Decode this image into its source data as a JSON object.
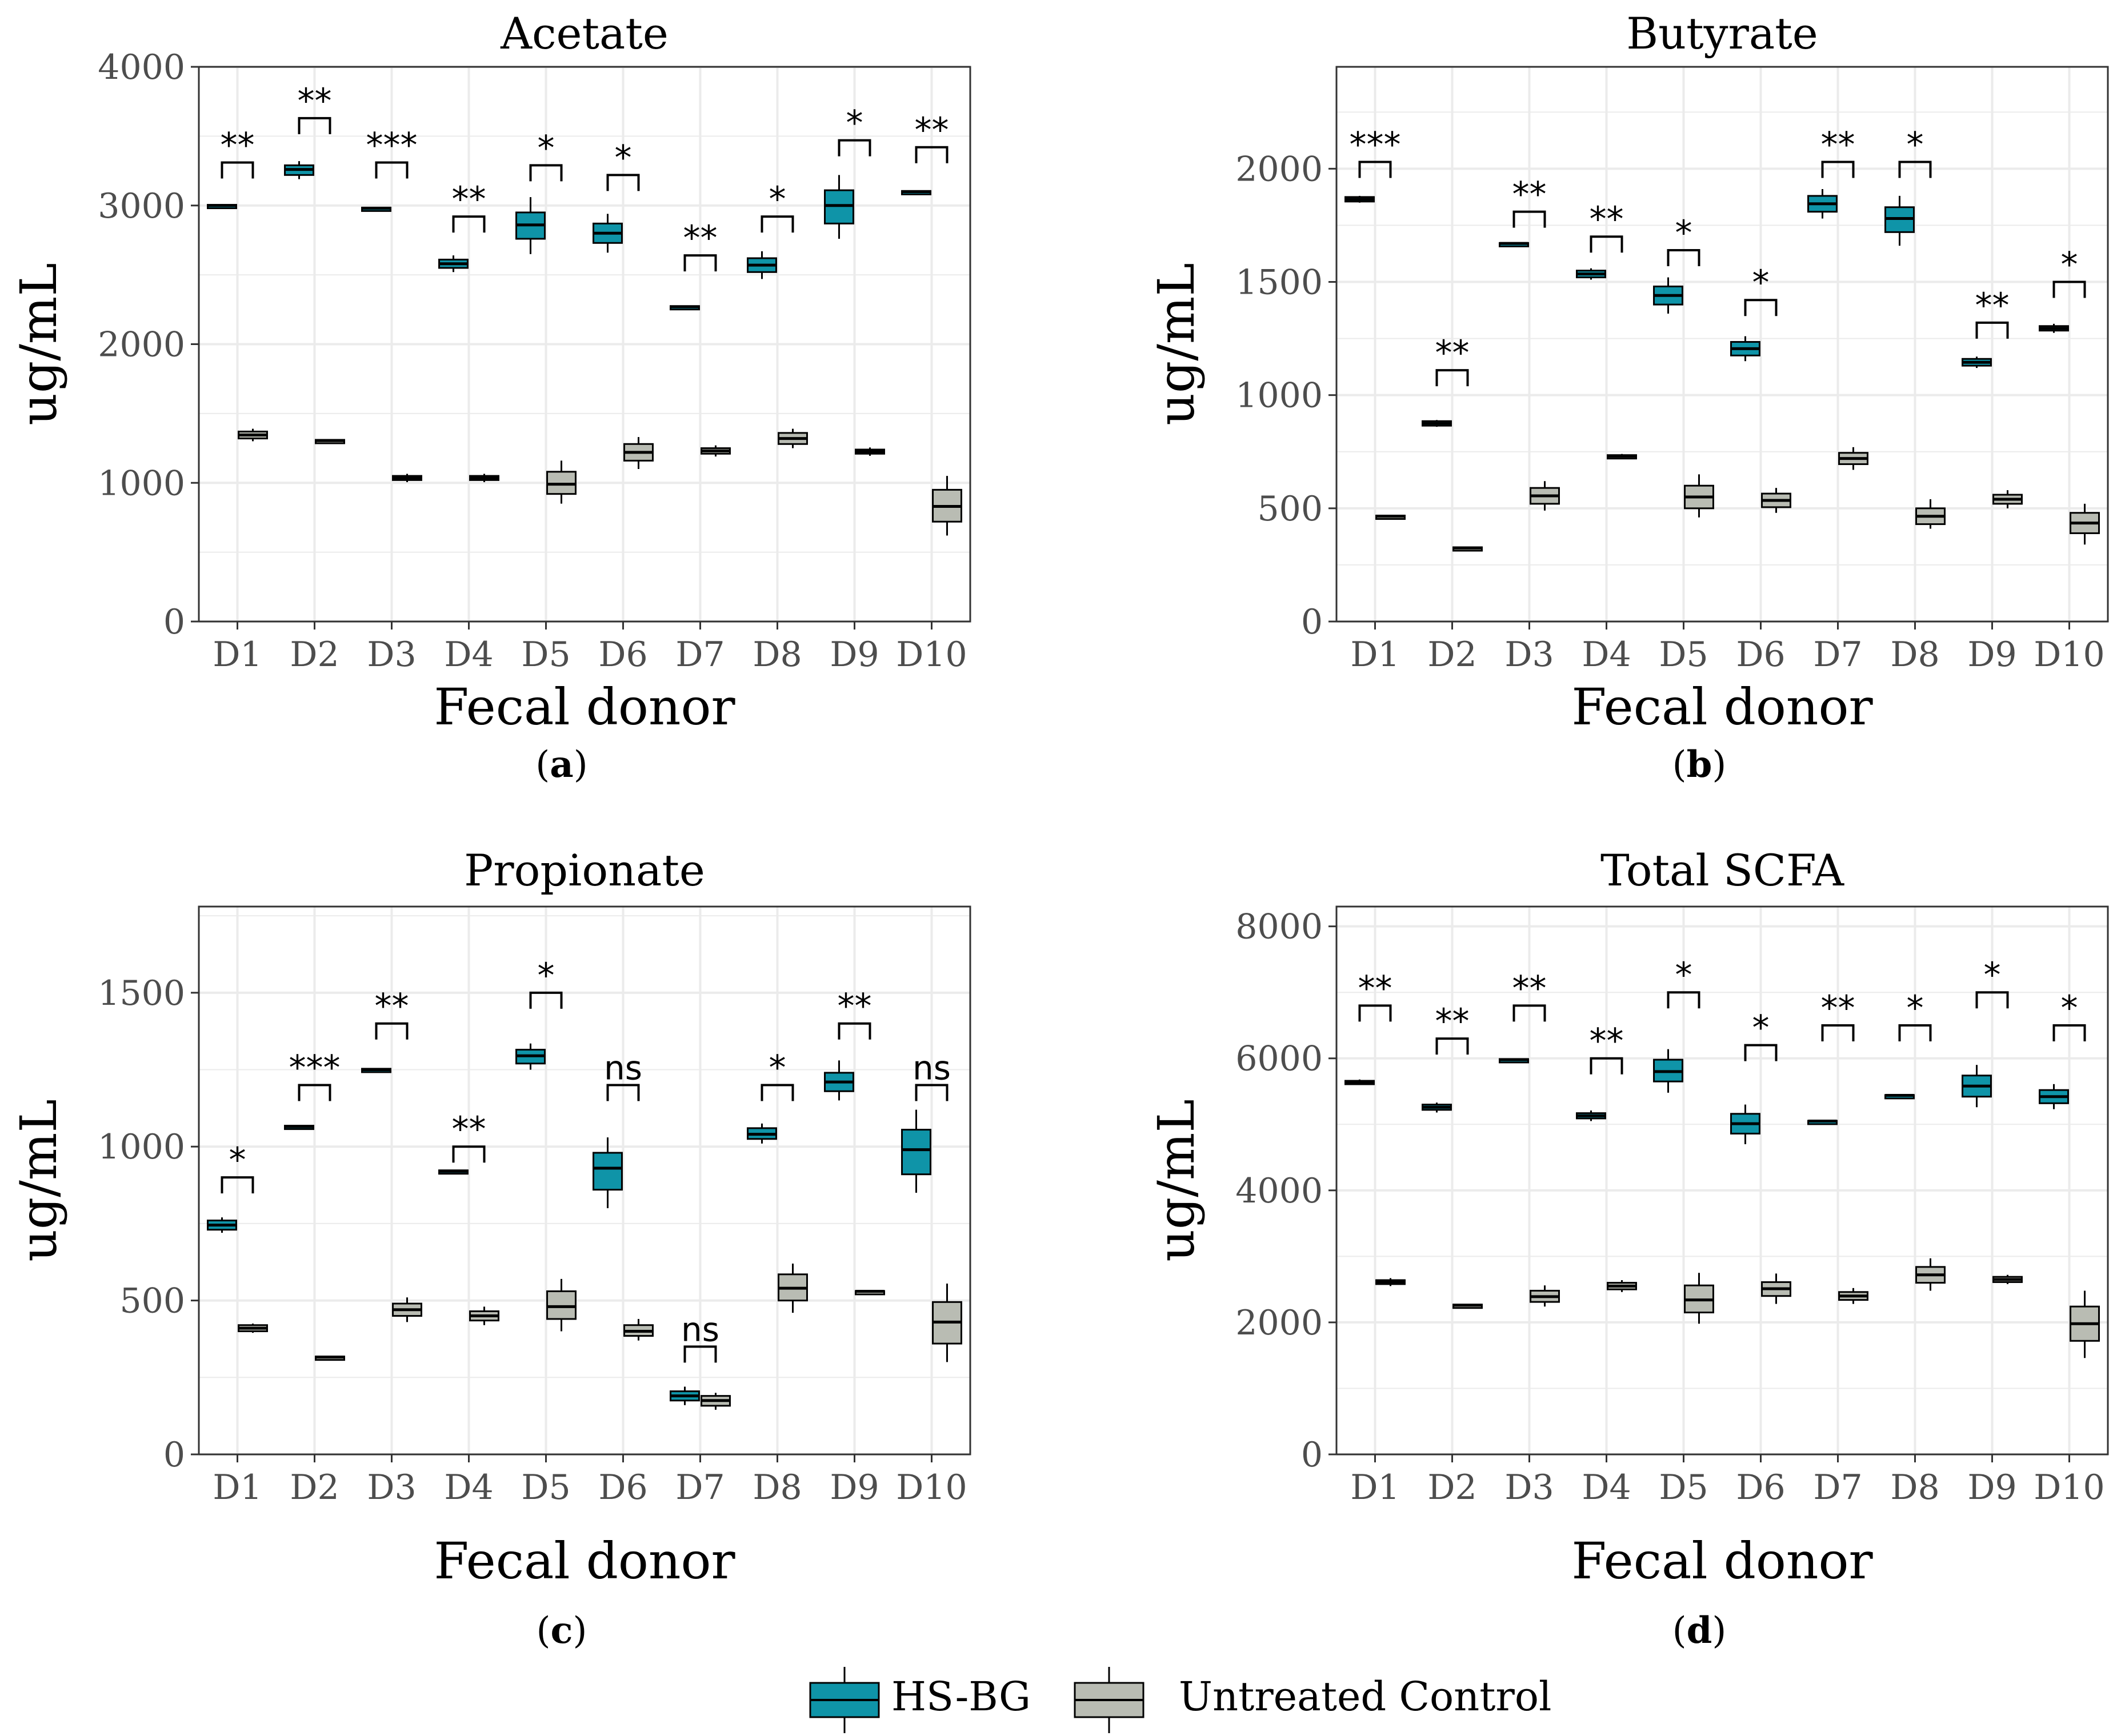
{
  "colors": {
    "hsbg": "#0f94a8",
    "control": "#b9bcb3",
    "grid": "#ebebeb",
    "axis_text": "#4d4d4d",
    "border": "#333333"
  },
  "legend": {
    "hsbg_label": "HS-BG",
    "control_label": "Untreated Control"
  },
  "chart_data": [
    {
      "id": "a",
      "type": "box",
      "title": "Acetate",
      "caption": "a",
      "xlabel": "Fecal donor",
      "ylabel": "ug/mL",
      "categories": [
        "D1",
        "D2",
        "D3",
        "D4",
        "D5",
        "D6",
        "D7",
        "D8",
        "D9",
        "D10"
      ],
      "ylim": [
        0,
        4000
      ],
      "yticks": [
        0,
        1000,
        2000,
        3000,
        4000
      ],
      "series": [
        {
          "name": "HS-BG",
          "boxes": [
            {
              "min": 2990,
              "q1": 2995,
              "median": 3000,
              "q3": 3005,
              "max": 3010
            },
            {
              "min": 3190,
              "q1": 3220,
              "median": 3260,
              "q3": 3290,
              "max": 3320
            },
            {
              "min": 2970,
              "q1": 2975,
              "median": 2980,
              "q3": 2985,
              "max": 2990
            },
            {
              "min": 2520,
              "q1": 2550,
              "median": 2580,
              "q3": 2610,
              "max": 2640
            },
            {
              "min": 2650,
              "q1": 2760,
              "median": 2860,
              "q3": 2950,
              "max": 3060
            },
            {
              "min": 2660,
              "q1": 2730,
              "median": 2800,
              "q3": 2870,
              "max": 2940
            },
            {
              "min": 2260,
              "q1": 2265,
              "median": 2270,
              "q3": 2275,
              "max": 2280
            },
            {
              "min": 2470,
              "q1": 2520,
              "median": 2570,
              "q3": 2620,
              "max": 2670
            },
            {
              "min": 2760,
              "q1": 2870,
              "median": 3000,
              "q3": 3110,
              "max": 3220
            },
            {
              "min": 3090,
              "q1": 3095,
              "median": 3100,
              "q3": 3105,
              "max": 3110
            }
          ]
        },
        {
          "name": "Untreated Control",
          "boxes": [
            {
              "min": 1300,
              "q1": 1320,
              "median": 1345,
              "q3": 1370,
              "max": 1390
            },
            {
              "min": 1295,
              "q1": 1300,
              "median": 1305,
              "q3": 1310,
              "max": 1315
            },
            {
              "min": 1005,
              "q1": 1020,
              "median": 1035,
              "q3": 1050,
              "max": 1065
            },
            {
              "min": 1005,
              "q1": 1020,
              "median": 1035,
              "q3": 1050,
              "max": 1065
            },
            {
              "min": 850,
              "q1": 920,
              "median": 990,
              "q3": 1080,
              "max": 1160
            },
            {
              "min": 1100,
              "q1": 1160,
              "median": 1220,
              "q3": 1280,
              "max": 1330
            },
            {
              "min": 1190,
              "q1": 1210,
              "median": 1230,
              "q3": 1250,
              "max": 1270
            },
            {
              "min": 1250,
              "q1": 1280,
              "median": 1320,
              "q3": 1360,
              "max": 1390
            },
            {
              "min": 1195,
              "q1": 1210,
              "median": 1225,
              "q3": 1240,
              "max": 1255
            },
            {
              "min": 620,
              "q1": 720,
              "median": 830,
              "q3": 950,
              "max": 1050
            }
          ]
        }
      ],
      "significance": [
        {
          "label": "**",
          "y": 3310
        },
        {
          "label": "**",
          "y": 3630
        },
        {
          "label": "***",
          "y": 3310
        },
        {
          "label": "**",
          "y": 2920
        },
        {
          "label": "*",
          "y": 3290
        },
        {
          "label": "*",
          "y": 3220
        },
        {
          "label": "**",
          "y": 2640
        },
        {
          "label": "*",
          "y": 2920
        },
        {
          "label": "*",
          "y": 3470
        },
        {
          "label": "**",
          "y": 3420
        }
      ]
    },
    {
      "id": "b",
      "type": "box",
      "title": "Butyrate",
      "caption": "b",
      "xlabel": "Fecal donor",
      "ylabel": "ug/mL",
      "categories": [
        "D1",
        "D2",
        "D3",
        "D4",
        "D5",
        "D6",
        "D7",
        "D8",
        "D9",
        "D10"
      ],
      "ylim": [
        0,
        2450
      ],
      "yticks": [
        0,
        500,
        1000,
        1500,
        2000
      ],
      "series": [
        {
          "name": "HS-BG",
          "boxes": [
            {
              "min": 1850,
              "q1": 1855,
              "median": 1865,
              "q3": 1875,
              "max": 1880
            },
            {
              "min": 860,
              "q1": 865,
              "median": 875,
              "q3": 885,
              "max": 890
            },
            {
              "min": 1665,
              "q1": 1668,
              "median": 1670,
              "q3": 1672,
              "max": 1675
            },
            {
              "min": 1510,
              "q1": 1520,
              "median": 1535,
              "q3": 1550,
              "max": 1560
            },
            {
              "min": 1360,
              "q1": 1400,
              "median": 1440,
              "q3": 1480,
              "max": 1520
            },
            {
              "min": 1150,
              "q1": 1175,
              "median": 1205,
              "q3": 1235,
              "max": 1260
            },
            {
              "min": 1780,
              "q1": 1810,
              "median": 1845,
              "q3": 1880,
              "max": 1910
            },
            {
              "min": 1660,
              "q1": 1720,
              "median": 1780,
              "q3": 1830,
              "max": 1880
            },
            {
              "min": 1120,
              "q1": 1130,
              "median": 1145,
              "q3": 1160,
              "max": 1170
            },
            {
              "min": 1275,
              "q1": 1285,
              "median": 1295,
              "q3": 1305,
              "max": 1315
            }
          ]
        },
        {
          "name": "Untreated Control",
          "boxes": [
            {
              "min": 460,
              "q1": 462,
              "median": 465,
              "q3": 468,
              "max": 470
            },
            {
              "min": 320,
              "q1": 322,
              "median": 325,
              "q3": 328,
              "max": 330
            },
            {
              "min": 490,
              "q1": 520,
              "median": 555,
              "q3": 590,
              "max": 620
            },
            {
              "min": 720,
              "q1": 725,
              "median": 730,
              "q3": 735,
              "max": 740
            },
            {
              "min": 460,
              "q1": 500,
              "median": 550,
              "q3": 600,
              "max": 650
            },
            {
              "min": 480,
              "q1": 505,
              "median": 535,
              "q3": 565,
              "max": 590
            },
            {
              "min": 670,
              "q1": 695,
              "median": 720,
              "q3": 745,
              "max": 770
            },
            {
              "min": 410,
              "q1": 430,
              "median": 465,
              "q3": 500,
              "max": 540
            },
            {
              "min": 500,
              "q1": 520,
              "median": 540,
              "q3": 560,
              "max": 580
            },
            {
              "min": 340,
              "q1": 390,
              "median": 435,
              "q3": 480,
              "max": 520
            }
          ]
        }
      ],
      "significance": [
        {
          "label": "***",
          "y": 2030
        },
        {
          "label": "**",
          "y": 1110
        },
        {
          "label": "**",
          "y": 1810
        },
        {
          "label": "**",
          "y": 1700
        },
        {
          "label": "*",
          "y": 1640
        },
        {
          "label": "*",
          "y": 1420
        },
        {
          "label": "**",
          "y": 2030
        },
        {
          "label": "*",
          "y": 2030
        },
        {
          "label": "**",
          "y": 1320
        },
        {
          "label": "*",
          "y": 1500
        }
      ]
    },
    {
      "id": "c",
      "type": "box",
      "title": "Propionate",
      "caption": "c",
      "xlabel": "Fecal donor",
      "ylabel": "ug/mL",
      "categories": [
        "D1",
        "D2",
        "D3",
        "D4",
        "D5",
        "D6",
        "D7",
        "D8",
        "D9",
        "D10"
      ],
      "ylim": [
        0,
        1780
      ],
      "yticks": [
        0,
        500,
        1000,
        1500
      ],
      "series": [
        {
          "name": "HS-BG",
          "boxes": [
            {
              "min": 720,
              "q1": 730,
              "median": 745,
              "q3": 760,
              "max": 770
            },
            {
              "min": 1060,
              "q1": 1062,
              "median": 1065,
              "q3": 1068,
              "max": 1070
            },
            {
              "min": 1245,
              "q1": 1247,
              "median": 1250,
              "q3": 1253,
              "max": 1255
            },
            {
              "min": 915,
              "q1": 917,
              "median": 920,
              "q3": 923,
              "max": 925
            },
            {
              "min": 1250,
              "q1": 1270,
              "median": 1295,
              "q3": 1315,
              "max": 1335
            },
            {
              "min": 800,
              "q1": 860,
              "median": 930,
              "q3": 980,
              "max": 1030
            },
            {
              "min": 160,
              "q1": 175,
              "median": 190,
              "q3": 205,
              "max": 220
            },
            {
              "min": 1010,
              "q1": 1025,
              "median": 1040,
              "q3": 1060,
              "max": 1075
            },
            {
              "min": 1150,
              "q1": 1180,
              "median": 1210,
              "q3": 1240,
              "max": 1280
            },
            {
              "min": 850,
              "q1": 910,
              "median": 990,
              "q3": 1055,
              "max": 1120
            }
          ]
        },
        {
          "name": "Untreated Control",
          "boxes": [
            {
              "min": 395,
              "q1": 400,
              "median": 410,
              "q3": 420,
              "max": 425
            },
            {
              "min": 312,
              "q1": 314,
              "median": 316,
              "q3": 318,
              "max": 320
            },
            {
              "min": 430,
              "q1": 450,
              "median": 470,
              "q3": 490,
              "max": 510
            },
            {
              "min": 420,
              "q1": 435,
              "median": 450,
              "q3": 465,
              "max": 480
            },
            {
              "min": 400,
              "q1": 440,
              "median": 480,
              "q3": 530,
              "max": 570
            },
            {
              "min": 370,
              "q1": 385,
              "median": 400,
              "q3": 420,
              "max": 440
            },
            {
              "min": 145,
              "q1": 158,
              "median": 175,
              "q3": 190,
              "max": 200
            },
            {
              "min": 460,
              "q1": 500,
              "median": 540,
              "q3": 585,
              "max": 620
            },
            {
              "min": 528,
              "q1": 529,
              "median": 530,
              "q3": 531,
              "max": 532
            },
            {
              "min": 300,
              "q1": 360,
              "median": 430,
              "q3": 495,
              "max": 555
            }
          ]
        }
      ],
      "significance": [
        {
          "label": "*",
          "y": 900
        },
        {
          "label": "***",
          "y": 1200
        },
        {
          "label": "**",
          "y": 1400
        },
        {
          "label": "**",
          "y": 1000
        },
        {
          "label": "*",
          "y": 1500
        },
        {
          "label": "ns",
          "y": 1200
        },
        {
          "label": "ns",
          "y": 350
        },
        {
          "label": "*",
          "y": 1200
        },
        {
          "label": "**",
          "y": 1400
        },
        {
          "label": "ns",
          "y": 1200
        }
      ]
    },
    {
      "id": "d",
      "type": "box",
      "title": "Total SCFA",
      "caption": "d",
      "xlabel": "Fecal donor",
      "ylabel": "ug/mL",
      "categories": [
        "D1",
        "D2",
        "D3",
        "D4",
        "D5",
        "D6",
        "D7",
        "D8",
        "D9",
        "D10"
      ],
      "ylim": [
        0,
        8300
      ],
      "yticks": [
        0,
        2000,
        4000,
        6000,
        8000
      ],
      "series": [
        {
          "name": "HS-BG",
          "boxes": [
            {
              "min": 5600,
              "q1": 5620,
              "median": 5640,
              "q3": 5660,
              "max": 5680
            },
            {
              "min": 5180,
              "q1": 5220,
              "median": 5260,
              "q3": 5300,
              "max": 5330
            },
            {
              "min": 5960,
              "q1": 5970,
              "median": 5980,
              "q3": 5990,
              "max": 6000
            },
            {
              "min": 5050,
              "q1": 5090,
              "median": 5130,
              "q3": 5170,
              "max": 5210
            },
            {
              "min": 5480,
              "q1": 5650,
              "median": 5800,
              "q3": 5980,
              "max": 6140
            },
            {
              "min": 4700,
              "q1": 4860,
              "median": 5010,
              "q3": 5160,
              "max": 5300
            },
            {
              "min": 5040,
              "q1": 5045,
              "median": 5050,
              "q3": 5055,
              "max": 5060
            },
            {
              "min": 5430,
              "q1": 5435,
              "median": 5440,
              "q3": 5445,
              "max": 5450
            },
            {
              "min": 5260,
              "q1": 5420,
              "median": 5580,
              "q3": 5740,
              "max": 5900
            },
            {
              "min": 5230,
              "q1": 5320,
              "median": 5420,
              "q3": 5520,
              "max": 5610
            }
          ]
        },
        {
          "name": "Untreated Control",
          "boxes": [
            {
              "min": 2550,
              "q1": 2580,
              "median": 2610,
              "q3": 2640,
              "max": 2670
            },
            {
              "min": 2245,
              "q1": 2250,
              "median": 2260,
              "q3": 2270,
              "max": 2275
            },
            {
              "min": 2240,
              "q1": 2310,
              "median": 2390,
              "q3": 2480,
              "max": 2560
            },
            {
              "min": 2460,
              "q1": 2500,
              "median": 2550,
              "q3": 2600,
              "max": 2640
            },
            {
              "min": 1980,
              "q1": 2150,
              "median": 2340,
              "q3": 2560,
              "max": 2750
            },
            {
              "min": 2280,
              "q1": 2400,
              "median": 2510,
              "q3": 2610,
              "max": 2740
            },
            {
              "min": 2280,
              "q1": 2340,
              "median": 2400,
              "q3": 2460,
              "max": 2520
            },
            {
              "min": 2480,
              "q1": 2600,
              "median": 2720,
              "q3": 2840,
              "max": 2970
            },
            {
              "min": 2580,
              "q1": 2610,
              "median": 2650,
              "q3": 2690,
              "max": 2720
            },
            {
              "min": 1460,
              "q1": 1720,
              "median": 1980,
              "q3": 2240,
              "max": 2480
            }
          ]
        }
      ],
      "significance": [
        {
          "label": "**",
          "y": 6800
        },
        {
          "label": "**",
          "y": 6300
        },
        {
          "label": "**",
          "y": 6800
        },
        {
          "label": "**",
          "y": 6000
        },
        {
          "label": "*",
          "y": 7000
        },
        {
          "label": "*",
          "y": 6200
        },
        {
          "label": "**",
          "y": 6500
        },
        {
          "label": "*",
          "y": 6500
        },
        {
          "label": "*",
          "y": 7000
        },
        {
          "label": "*",
          "y": 6500
        }
      ]
    }
  ]
}
